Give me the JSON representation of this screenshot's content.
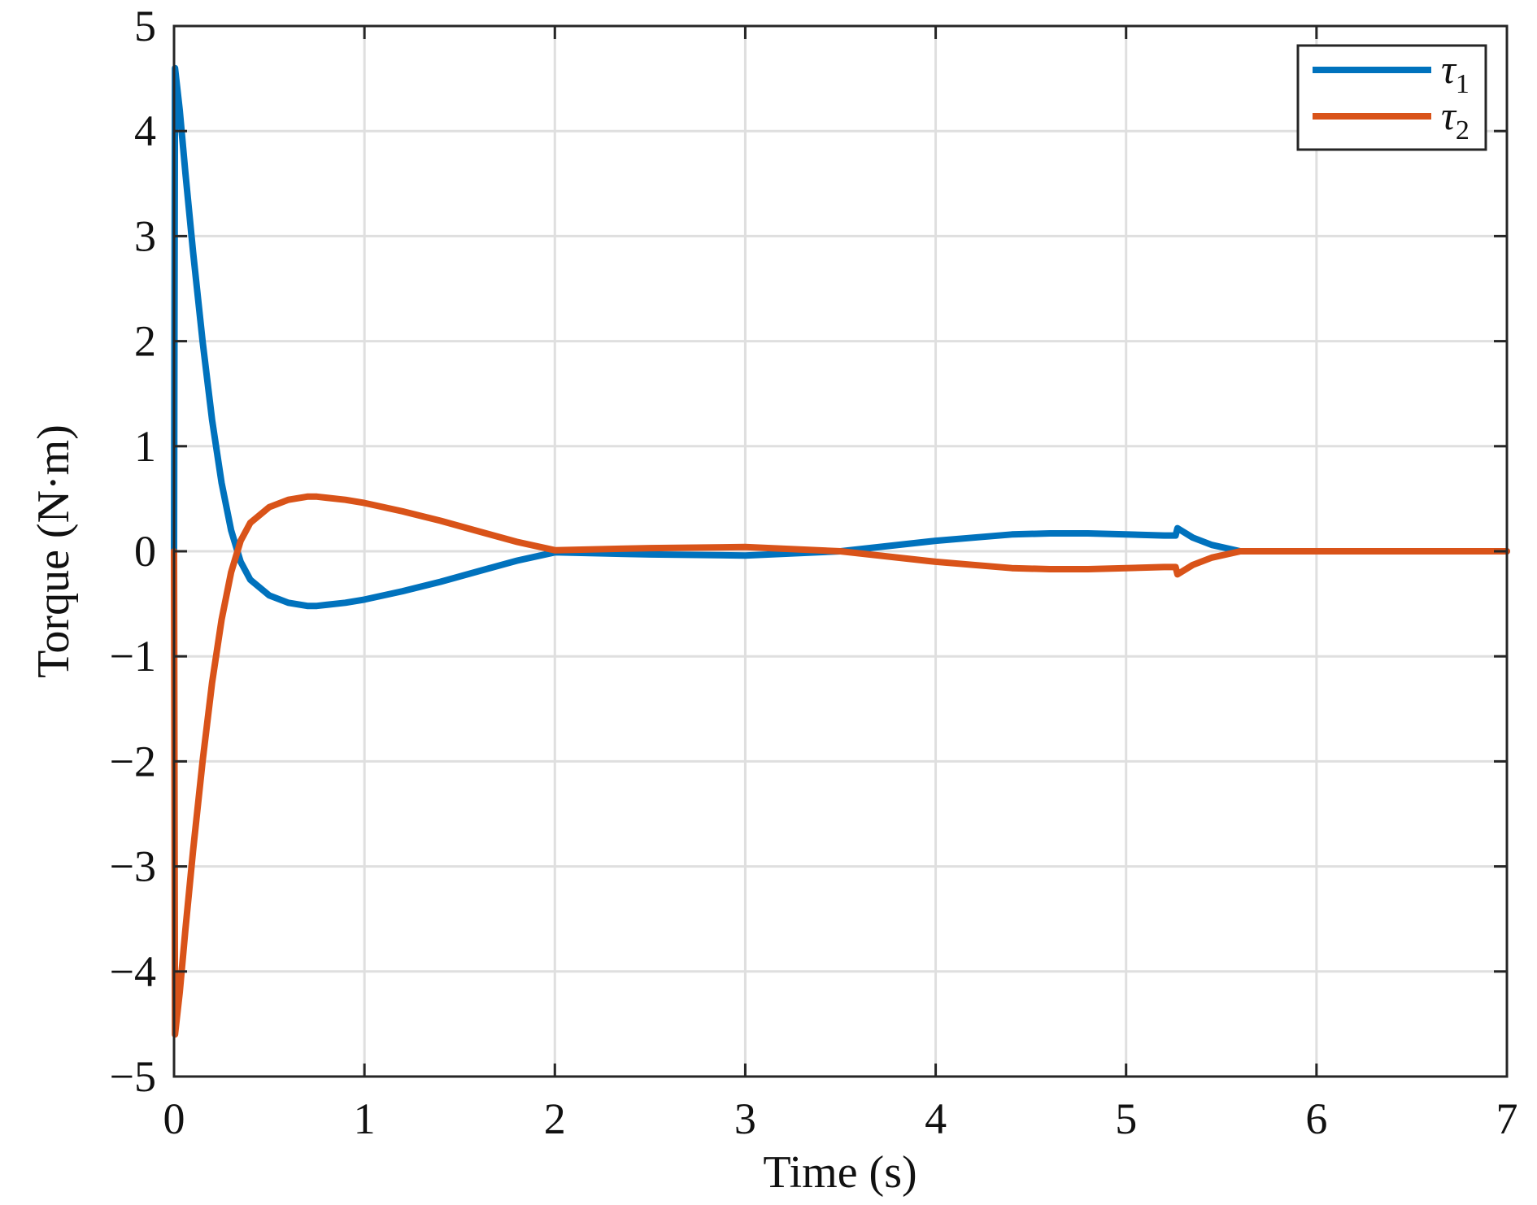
{
  "chart_data": {
    "type": "line",
    "title": "",
    "xlabel": "Time (s)",
    "ylabel": "Torque (N·m)",
    "xlim": [
      0,
      7
    ],
    "ylim": [
      -5,
      5
    ],
    "xticks": [
      0,
      1,
      2,
      3,
      4,
      5,
      6,
      7
    ],
    "yticks": [
      -5,
      -4,
      -3,
      -2,
      -1,
      0,
      1,
      2,
      3,
      4,
      5
    ],
    "xtick_labels": [
      "0",
      "1",
      "2",
      "3",
      "4",
      "5",
      "6",
      "7"
    ],
    "ytick_labels": [
      "−5",
      "−4",
      "−3",
      "−2",
      "−1",
      "0",
      "1",
      "2",
      "3",
      "4",
      "5"
    ],
    "grid": true,
    "legend_position": "top-right",
    "series": [
      {
        "name": "τ",
        "name_subscript": "1",
        "color": "#0072BD",
        "points": [
          [
            0,
            0
          ],
          [
            0.005,
            4.6
          ],
          [
            0.03,
            4.2
          ],
          [
            0.06,
            3.6
          ],
          [
            0.1,
            2.85
          ],
          [
            0.15,
            2.0
          ],
          [
            0.2,
            1.25
          ],
          [
            0.25,
            0.65
          ],
          [
            0.3,
            0.2
          ],
          [
            0.35,
            -0.1
          ],
          [
            0.4,
            -0.27
          ],
          [
            0.5,
            -0.42
          ],
          [
            0.6,
            -0.49
          ],
          [
            0.7,
            -0.52
          ],
          [
            0.75,
            -0.52
          ],
          [
            0.8,
            -0.51
          ],
          [
            0.9,
            -0.49
          ],
          [
            1.0,
            -0.46
          ],
          [
            1.2,
            -0.38
          ],
          [
            1.4,
            -0.29
          ],
          [
            1.6,
            -0.19
          ],
          [
            1.8,
            -0.09
          ],
          [
            2.0,
            -0.01
          ],
          [
            2.5,
            -0.03
          ],
          [
            3.0,
            -0.04
          ],
          [
            3.5,
            0.0
          ],
          [
            4.0,
            0.1
          ],
          [
            4.2,
            0.13
          ],
          [
            4.4,
            0.16
          ],
          [
            4.6,
            0.17
          ],
          [
            4.8,
            0.17
          ],
          [
            5.0,
            0.16
          ],
          [
            5.2,
            0.15
          ],
          [
            5.26,
            0.15
          ],
          [
            5.27,
            0.22
          ],
          [
            5.35,
            0.13
          ],
          [
            5.45,
            0.06
          ],
          [
            5.55,
            0.02
          ],
          [
            5.6,
            0.0
          ],
          [
            6.0,
            0.0
          ],
          [
            6.5,
            0.0
          ],
          [
            7.0,
            0.0
          ]
        ]
      },
      {
        "name": "τ",
        "name_subscript": "2",
        "color": "#D95319",
        "points": [
          [
            0,
            0
          ],
          [
            0.005,
            -4.6
          ],
          [
            0.03,
            -4.2
          ],
          [
            0.06,
            -3.6
          ],
          [
            0.1,
            -2.85
          ],
          [
            0.15,
            -2.0
          ],
          [
            0.2,
            -1.25
          ],
          [
            0.25,
            -0.65
          ],
          [
            0.3,
            -0.2
          ],
          [
            0.35,
            0.1
          ],
          [
            0.4,
            0.27
          ],
          [
            0.5,
            0.42
          ],
          [
            0.6,
            0.49
          ],
          [
            0.7,
            0.52
          ],
          [
            0.75,
            0.52
          ],
          [
            0.8,
            0.51
          ],
          [
            0.9,
            0.49
          ],
          [
            1.0,
            0.46
          ],
          [
            1.2,
            0.38
          ],
          [
            1.4,
            0.29
          ],
          [
            1.6,
            0.19
          ],
          [
            1.8,
            0.09
          ],
          [
            2.0,
            0.01
          ],
          [
            2.5,
            0.03
          ],
          [
            3.0,
            0.04
          ],
          [
            3.5,
            0.0
          ],
          [
            4.0,
            -0.1
          ],
          [
            4.2,
            -0.13
          ],
          [
            4.4,
            -0.16
          ],
          [
            4.6,
            -0.17
          ],
          [
            4.8,
            -0.17
          ],
          [
            5.0,
            -0.16
          ],
          [
            5.2,
            -0.15
          ],
          [
            5.26,
            -0.15
          ],
          [
            5.27,
            -0.22
          ],
          [
            5.35,
            -0.13
          ],
          [
            5.45,
            -0.06
          ],
          [
            5.55,
            -0.02
          ],
          [
            5.6,
            0.0
          ],
          [
            6.0,
            0.0
          ],
          [
            6.5,
            0.0
          ],
          [
            7.0,
            0.0
          ]
        ]
      }
    ]
  }
}
